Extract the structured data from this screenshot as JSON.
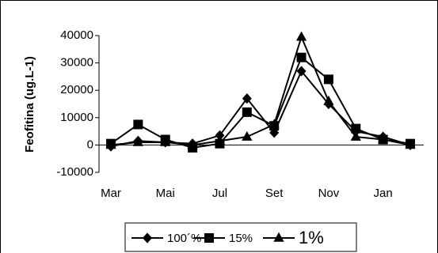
{
  "chart_data": {
    "type": "line",
    "y_label": "Feofitina (ug.L-1)",
    "categories": [
      "Mar",
      null,
      "Mai",
      null,
      "Jul",
      null,
      "Set",
      null,
      "Nov",
      null,
      "Jan",
      null
    ],
    "series": [
      {
        "name": "100´%",
        "color": "#000000",
        "marker": "diamond",
        "values": [
          -500,
          1500,
          1000,
          500,
          3500,
          17000,
          4500,
          27000,
          15000,
          5000,
          3000,
          0
        ]
      },
      {
        "name": "15%",
        "color": "#000000",
        "marker": "square",
        "values": [
          500,
          7500,
          2000,
          -1000,
          500,
          12000,
          7000,
          32000,
          24000,
          6000,
          2000,
          500
        ]
      },
      {
        "name": "1%",
        "color": "#000000",
        "marker": "triangle",
        "values": [
          0,
          1000,
          1000,
          0,
          1500,
          3000,
          7500,
          39500,
          16000,
          3000,
          2000,
          0
        ]
      }
    ],
    "ylim": [
      -10000,
      40000
    ],
    "yticks": [
      -10000,
      0,
      10000,
      20000,
      30000,
      40000
    ]
  }
}
